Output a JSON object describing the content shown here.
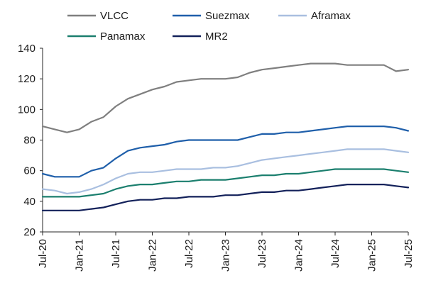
{
  "chart_data": {
    "type": "line",
    "title": "",
    "xlabel": "",
    "ylabel": "",
    "ylim": [
      20,
      140
    ],
    "yticks": [
      20,
      40,
      60,
      80,
      100,
      120,
      140
    ],
    "x_tick_labels": [
      "Jul-20",
      "Jan-21",
      "Jul-21",
      "Jan-22",
      "Jul-22",
      "Jan-23",
      "Jul-23",
      "Jan-24",
      "Jul-24",
      "Jan-25",
      "Jul-25"
    ],
    "grid": false,
    "legend_position": "top",
    "series": [
      {
        "name": "VLCC",
        "color": "#7f7f7f",
        "x": [
          "Jul-20",
          "Sep-20",
          "Nov-20",
          "Jan-21",
          "Mar-21",
          "May-21",
          "Jul-21",
          "Sep-21",
          "Nov-21",
          "Jan-22",
          "Mar-22",
          "May-22",
          "Jul-22",
          "Sep-22",
          "Nov-22",
          "Jan-23",
          "Mar-23",
          "May-23",
          "Jul-23",
          "Sep-23",
          "Nov-23",
          "Jan-24",
          "Mar-24",
          "May-24",
          "Jul-24",
          "Sep-24",
          "Nov-24",
          "Jan-25",
          "Mar-25",
          "May-25",
          "Jul-25"
        ],
        "values": [
          89,
          87,
          85,
          87,
          92,
          95,
          102,
          107,
          110,
          113,
          115,
          118,
          119,
          120,
          120,
          120,
          121,
          124,
          126,
          127,
          128,
          129,
          130,
          130,
          130,
          129,
          129,
          129,
          129,
          125,
          126
        ]
      },
      {
        "name": "Suezmax",
        "color": "#1f5faa",
        "x": [
          "Jul-20",
          "Sep-20",
          "Nov-20",
          "Jan-21",
          "Mar-21",
          "May-21",
          "Jul-21",
          "Sep-21",
          "Nov-21",
          "Jan-22",
          "Mar-22",
          "May-22",
          "Jul-22",
          "Sep-22",
          "Nov-22",
          "Jan-23",
          "Mar-23",
          "May-23",
          "Jul-23",
          "Sep-23",
          "Nov-23",
          "Jan-24",
          "Mar-24",
          "May-24",
          "Jul-24",
          "Sep-24",
          "Nov-24",
          "Jan-25",
          "Mar-25",
          "May-25",
          "Jul-25"
        ],
        "values": [
          58,
          56,
          56,
          56,
          60,
          62,
          68,
          73,
          75,
          76,
          77,
          79,
          80,
          80,
          80,
          80,
          80,
          82,
          84,
          84,
          85,
          85,
          86,
          87,
          88,
          89,
          89,
          89,
          89,
          88,
          86
        ]
      },
      {
        "name": "Aframax",
        "color": "#a9bfe0",
        "x": [
          "Jul-20",
          "Sep-20",
          "Nov-20",
          "Jan-21",
          "Mar-21",
          "May-21",
          "Jul-21",
          "Sep-21",
          "Nov-21",
          "Jan-22",
          "Mar-22",
          "May-22",
          "Jul-22",
          "Sep-22",
          "Nov-22",
          "Jan-23",
          "Mar-23",
          "May-23",
          "Jul-23",
          "Sep-23",
          "Nov-23",
          "Jan-24",
          "Mar-24",
          "May-24",
          "Jul-24",
          "Sep-24",
          "Nov-24",
          "Jan-25",
          "Mar-25",
          "May-25",
          "Jul-25"
        ],
        "values": [
          48,
          47,
          45,
          46,
          48,
          51,
          55,
          58,
          59,
          59,
          60,
          61,
          61,
          61,
          62,
          62,
          63,
          65,
          67,
          68,
          69,
          70,
          71,
          72,
          73,
          74,
          74,
          74,
          74,
          73,
          72
        ]
      },
      {
        "name": "Panamax",
        "color": "#1b7f6e",
        "x": [
          "Jul-20",
          "Sep-20",
          "Nov-20",
          "Jan-21",
          "Mar-21",
          "May-21",
          "Jul-21",
          "Sep-21",
          "Nov-21",
          "Jan-22",
          "Mar-22",
          "May-22",
          "Jul-22",
          "Sep-22",
          "Nov-22",
          "Jan-23",
          "Mar-23",
          "May-23",
          "Jul-23",
          "Sep-23",
          "Nov-23",
          "Jan-24",
          "Mar-24",
          "May-24",
          "Jul-24",
          "Sep-24",
          "Nov-24",
          "Jan-25",
          "Mar-25",
          "May-25",
          "Jul-25"
        ],
        "values": [
          43,
          43,
          43,
          43,
          44,
          45,
          48,
          50,
          51,
          51,
          52,
          53,
          53,
          54,
          54,
          54,
          55,
          56,
          57,
          57,
          58,
          58,
          59,
          60,
          61,
          61,
          61,
          61,
          61,
          60,
          59
        ]
      },
      {
        "name": "MR2",
        "color": "#13215a",
        "x": [
          "Jul-20",
          "Sep-20",
          "Nov-20",
          "Jan-21",
          "Mar-21",
          "May-21",
          "Jul-21",
          "Sep-21",
          "Nov-21",
          "Jan-22",
          "Mar-22",
          "May-22",
          "Jul-22",
          "Sep-22",
          "Nov-22",
          "Jan-23",
          "Mar-23",
          "May-23",
          "Jul-23",
          "Sep-23",
          "Nov-23",
          "Jan-24",
          "Mar-24",
          "May-24",
          "Jul-24",
          "Sep-24",
          "Nov-24",
          "Jan-25",
          "Mar-25",
          "May-25",
          "Jul-25"
        ],
        "values": [
          34,
          34,
          34,
          34,
          35,
          36,
          38,
          40,
          41,
          41,
          42,
          42,
          43,
          43,
          43,
          44,
          44,
          45,
          46,
          46,
          47,
          47,
          48,
          49,
          50,
          51,
          51,
          51,
          51,
          50,
          49
        ]
      }
    ]
  }
}
